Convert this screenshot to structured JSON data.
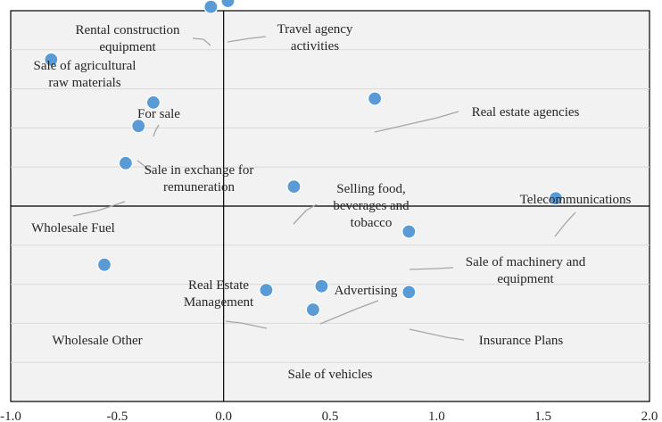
{
  "chart_data": {
    "type": "scatter",
    "title": "",
    "xlabel": "",
    "ylabel": "",
    "xlim": [
      -1.0,
      2.0
    ],
    "x_ticks": [
      -1.0,
      -0.5,
      0.0,
      0.5,
      1.0,
      1.5,
      2.0
    ],
    "x_tick_labels": [
      "-1.0",
      "-0.5",
      "0.0",
      "0.5",
      "1.0",
      "1.5",
      "2.0"
    ],
    "ylim": [
      -1.0,
      1.0
    ],
    "y_gridlines": [
      -0.8,
      -0.6,
      -0.4,
      -0.2,
      0.0,
      0.2,
      0.4,
      0.6,
      0.8
    ],
    "grid": true,
    "point_color": "#5b9bd5",
    "points": [
      {
        "label": [
          "Rental construction",
          "equipment"
        ],
        "x": -0.06,
        "y": 1.02
      },
      {
        "label": [
          "Travel agency",
          "activities"
        ],
        "x": 0.02,
        "y": 1.05
      },
      {
        "label": [
          "Sale of agricultural",
          "raw materials"
        ],
        "x": -0.81,
        "y": 0.75
      },
      {
        "label": [
          "For sale"
        ],
        "x": -0.33,
        "y": 0.53
      },
      {
        "label": [
          "Real estate agencies"
        ],
        "x": 0.71,
        "y": 0.55
      },
      {
        "label": [
          "Sale in exchange for",
          "remuneration"
        ],
        "x": -0.4,
        "y": 0.41
      },
      {
        "label": [
          "Wholesale Fuel"
        ],
        "x": -0.46,
        "y": 0.22
      },
      {
        "label": [
          "Selling food,",
          "beverages and",
          "tobacco"
        ],
        "x": 0.33,
        "y": 0.1
      },
      {
        "label": [
          "Telecommunications"
        ],
        "x": 1.56,
        "y": 0.04
      },
      {
        "label": [
          "Sale of machinery and",
          "equipment"
        ],
        "x": 0.87,
        "y": -0.13
      },
      {
        "label": [
          "Wholesale Other"
        ],
        "x": -0.56,
        "y": -0.3
      },
      {
        "label": [
          "Real Estate",
          "Management"
        ],
        "x": 0.2,
        "y": -0.43
      },
      {
        "label": [
          "Advertising"
        ],
        "x": 0.46,
        "y": -0.41
      },
      {
        "label": [
          "Insurance Plans"
        ],
        "x": 0.87,
        "y": -0.44
      },
      {
        "label": [
          "Sale of vehicles"
        ],
        "x": 0.42,
        "y": -0.53
      }
    ]
  }
}
